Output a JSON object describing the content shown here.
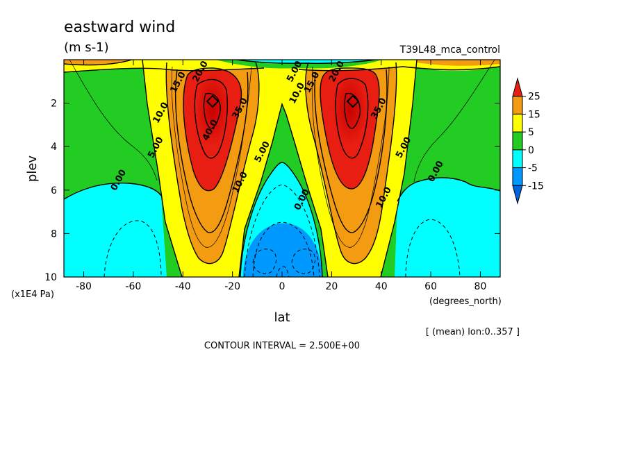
{
  "chart_data": {
    "type": "heatmap",
    "title": "eastward wind",
    "units": "(m s-1)",
    "experiment": "T39L48_mca_control",
    "xlabel": "lat",
    "x_units": "(degrees_north)",
    "ylabel": "plev",
    "y_units": "(x1E4 Pa)",
    "averaging_note": "[ (mean) lon:0..357 ]",
    "contour_interval_text": "CONTOUR INTERVAL = 2.500E+00",
    "xlim": [
      -88,
      88
    ],
    "ylim": [
      0,
      10
    ],
    "y_inverted": true,
    "x_ticks": [
      -80,
      -60,
      -40,
      -20,
      0,
      20,
      40,
      60,
      80
    ],
    "y_ticks": [
      2,
      4,
      6,
      8,
      10
    ],
    "colorbar": {
      "labels": [
        "25",
        "15",
        "5",
        "0",
        "-5",
        "-15"
      ],
      "level_values": [
        25,
        15,
        5,
        0,
        -5,
        -15
      ],
      "colors": [
        "#e81e12",
        "#f39c12",
        "#ffff00",
        "#22cc22",
        "#00ffff",
        "#0099ff",
        "#0066dd"
      ]
    },
    "jets": [
      {
        "lat": -28,
        "plev": 2.0,
        "max_speed": 42.5
      },
      {
        "lat": 28,
        "plev": 2.0,
        "max_speed": 42.5
      }
    ],
    "easterly_minimum": {
      "lat": 0,
      "plev": 9.3,
      "speed": -10
    },
    "contour_labels": [
      {
        "text": "40.0",
        "lat": -28,
        "plev": 3.3
      },
      {
        "text": "35.0",
        "lat": -16,
        "plev": 2.3
      },
      {
        "text": "35.0",
        "lat": 40,
        "plev": 2.3
      },
      {
        "text": "15.0",
        "lat": -41,
        "plev": 1.1
      },
      {
        "text": "15.0",
        "lat": 13,
        "plev": 1.1
      },
      {
        "text": "20.0",
        "lat": -32,
        "plev": 0.6
      },
      {
        "text": "20.0",
        "lat": 23,
        "plev": 0.6
      },
      {
        "text": "10.0",
        "lat": -48,
        "plev": 2.5
      },
      {
        "text": "10.0",
        "lat": 7,
        "plev": 1.6
      },
      {
        "text": "10.0",
        "lat": -16,
        "plev": 5.7
      },
      {
        "text": "10.0",
        "lat": 42,
        "plev": 6.4
      },
      {
        "text": "5.00",
        "lat": -50,
        "plev": 4.1
      },
      {
        "text": "5.00",
        "lat": -7,
        "plev": 4.3
      },
      {
        "text": "5.00",
        "lat": 6,
        "plev": 0.6
      },
      {
        "text": "5.00",
        "lat": 50,
        "plev": 4.1
      },
      {
        "text": "0.00",
        "lat": -65,
        "plev": 5.6
      },
      {
        "text": "0.00",
        "lat": 9,
        "plev": 6.5
      },
      {
        "text": "0.00",
        "lat": 63,
        "plev": 5.2
      }
    ]
  }
}
